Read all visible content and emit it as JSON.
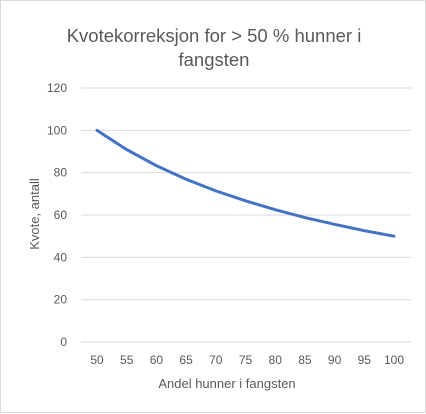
{
  "chart_data": {
    "type": "line",
    "title_line1": "Kvotekorreksjon for > 50 % hunner i",
    "title_line2": "fangsten",
    "xlabel": "Andel hunner i fangsten",
    "ylabel": "Kvote, antall",
    "ylim": [
      0,
      120
    ],
    "yticks": [
      0,
      20,
      40,
      60,
      80,
      100,
      120
    ],
    "grid": true,
    "legend": "none",
    "categories": [
      "50",
      "55",
      "60",
      "65",
      "70",
      "75",
      "80",
      "85",
      "90",
      "95",
      "100"
    ],
    "series": [
      {
        "color": "#4472c4",
        "values": [
          100,
          90.9,
          83.3,
          76.9,
          71.4,
          66.7,
          62.5,
          58.8,
          55.6,
          52.6,
          50
        ]
      }
    ]
  }
}
